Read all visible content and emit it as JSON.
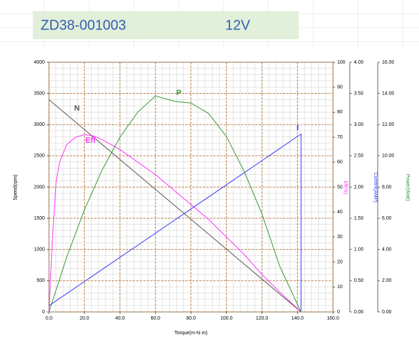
{
  "chart_data": {
    "type": "line",
    "title": "ZD38-001003",
    "subtitle": "12V",
    "x_label": "Torque(m-N·m)",
    "y_label": "Speed(rpm)",
    "y2_label": "Eff(%)",
    "y3_label": "Current(AMP)",
    "y4_label": "Power(Watt)",
    "xlim": [
      0,
      160
    ],
    "xticks": [
      {
        "value": 0,
        "label": "0.0"
      },
      {
        "value": 20,
        "label": "20.0"
      },
      {
        "value": 40,
        "label": "40.0"
      },
      {
        "value": 60,
        "label": "60.0"
      },
      {
        "value": 80,
        "label": "80.0"
      },
      {
        "value": 100,
        "label": "100.0"
      },
      {
        "value": 120,
        "label": "120.0"
      },
      {
        "value": 140,
        "label": "140.0"
      },
      {
        "value": 160,
        "label": "160.0"
      }
    ],
    "ylim": [
      0,
      4000
    ],
    "yticks": [
      0,
      500,
      1000,
      1500,
      2000,
      2500,
      3000,
      3500,
      4000
    ],
    "y2lim": [
      0,
      100
    ],
    "y2ticks": [
      0,
      10,
      20,
      30,
      40,
      50,
      60,
      70,
      80,
      90,
      100
    ],
    "y3lim": [
      0,
      4
    ],
    "y3ticks": [
      {
        "value": 0,
        "label": "0.00"
      },
      {
        "value": 0.5,
        "label": "0.50"
      },
      {
        "value": 1,
        "label": "1.00"
      },
      {
        "value": 1.5,
        "label": "1.50"
      },
      {
        "value": 2,
        "label": "2.00"
      },
      {
        "value": 2.5,
        "label": "2.50"
      },
      {
        "value": 3,
        "label": "3.00"
      },
      {
        "value": 3.5,
        "label": "3.50"
      },
      {
        "value": 4,
        "label": "4.00"
      }
    ],
    "y4lim": [
      0,
      16
    ],
    "y4ticks": [
      {
        "value": 0,
        "label": "0.00"
      },
      {
        "value": 2,
        "label": "2.00"
      },
      {
        "value": 4,
        "label": "4.00"
      },
      {
        "value": 6,
        "label": "6.00"
      },
      {
        "value": 8,
        "label": "8.00"
      },
      {
        "value": 10,
        "label": "10.00"
      },
      {
        "value": 12,
        "label": "12.00"
      },
      {
        "value": 14,
        "label": "14.00"
      },
      {
        "value": 16,
        "label": "16.00"
      }
    ],
    "grid": true,
    "series": [
      {
        "name": "N",
        "color": "#555555",
        "axis": "y",
        "x": [
          0,
          142
        ],
        "values": [
          3400,
          0
        ]
      },
      {
        "name": "Eff",
        "color": "#ff33ff",
        "axis": "y2",
        "x": [
          0,
          2,
          4,
          6,
          10,
          15,
          20,
          25,
          30,
          40,
          50,
          60,
          70,
          80,
          90,
          100,
          110,
          120,
          130,
          142
        ],
        "values": [
          0,
          30,
          52,
          60,
          67,
          70,
          71,
          70.5,
          69,
          65,
          60,
          55,
          49,
          43,
          37,
          30,
          23,
          15,
          8,
          0
        ]
      },
      {
        "name": "I",
        "color": "#3333ff",
        "axis": "y3",
        "x": [
          0,
          142,
          142
        ],
        "values": [
          0.1,
          2.85,
          0
        ]
      },
      {
        "name": "P",
        "color": "#339933",
        "axis": "y4",
        "x": [
          0,
          10,
          20,
          30,
          40,
          50,
          60,
          71,
          80,
          90,
          100,
          110,
          120,
          130,
          142
        ],
        "values": [
          0,
          3.51,
          6.55,
          9.11,
          11.2,
          12.8,
          13.84,
          13.49,
          13.39,
          12.71,
          11.24,
          9.0,
          6.28,
          2.93,
          0
        ]
      }
    ]
  }
}
